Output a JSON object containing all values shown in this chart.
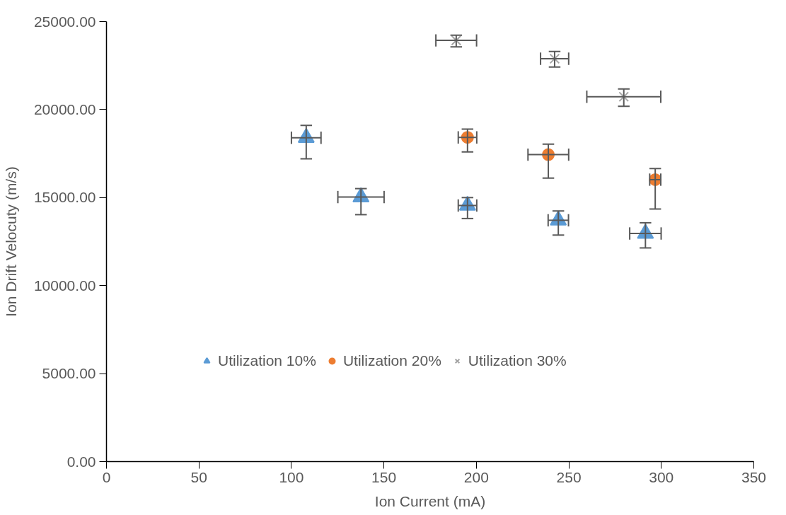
{
  "chart_data": {
    "type": "scatter",
    "xlabel": "Ion Current (mA)",
    "ylabel": "Ion Drift Velocuty (m/s)",
    "xlim": [
      0,
      350
    ],
    "xticks": [
      0,
      50,
      100,
      150,
      200,
      250,
      300,
      350
    ],
    "ylim": [
      0,
      25000
    ],
    "yticks": [
      {
        "value": 0,
        "label": "0.00"
      },
      {
        "value": 5000,
        "label": "5000.00"
      },
      {
        "value": 10000,
        "label": "10000.00"
      },
      {
        "value": 15000,
        "label": "15000.00"
      },
      {
        "value": 20000,
        "label": "20000.00"
      },
      {
        "value": 25000,
        "label": "25000.00"
      }
    ],
    "grid": false,
    "legend": "bottom",
    "series": [
      {
        "name": "Utilization 10%",
        "color": "#5b9bd5",
        "marker": "triangle",
        "x": [
          108,
          137.6,
          195.2,
          244.3,
          291.4
        ],
        "values": [
          18400,
          15030,
          14550,
          13710,
          12960
        ],
        "errors": [
          [
            17200,
            19100
          ],
          [
            14030,
            15510
          ],
          [
            13810,
            15000
          ],
          [
            12870,
            14240
          ],
          [
            12140,
            13570
          ]
        ],
        "xerrors": [
          8,
          12.5,
          5,
          5.5,
          8.5
        ]
      },
      {
        "name": "Utilization 20%",
        "color": "#ed7d31",
        "marker": "circle",
        "x": [
          195.2,
          238.9,
          296.7
        ],
        "values": [
          18420,
          17440,
          16020
        ],
        "errors": [
          [
            17590,
            18890
          ],
          [
            16110,
            18040
          ],
          [
            14350,
            16650
          ]
        ],
        "xerrors": [
          5,
          11,
          3
        ]
      },
      {
        "name": "Utilization 30%",
        "color": "#a5a5a5",
        "marker": "cross",
        "x": [
          189.1,
          242.3,
          279.7
        ],
        "values": [
          23930,
          22890,
          20730
        ],
        "errors": [
          [
            23560,
            24230
          ],
          [
            22420,
            23300
          ],
          [
            20190,
            21170
          ]
        ],
        "xerrors": [
          11,
          7.6,
          20
        ]
      }
    ]
  }
}
